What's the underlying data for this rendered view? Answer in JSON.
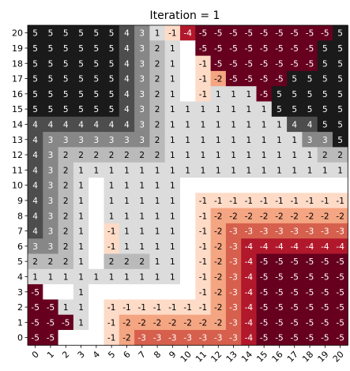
{
  "chart_data": {
    "type": "heatmap",
    "title": "Iteration = 1",
    "xlabel": "",
    "ylabel": "",
    "x_ticks": [
      "0",
      "1",
      "2",
      "3",
      "4",
      "5",
      "6",
      "7",
      "8",
      "9",
      "10",
      "11",
      "12",
      "13",
      "14",
      "15",
      "16",
      "17",
      "18",
      "19",
      "20"
    ],
    "y_ticks": [
      "0",
      "1",
      "2",
      "3",
      "4",
      "5",
      "6",
      "7",
      "8",
      "9",
      "10",
      "11",
      "12",
      "13",
      "14",
      "15",
      "16",
      "17",
      "18",
      "19",
      "20"
    ],
    "value_range": [
      -5,
      5
    ],
    "colormap": "RdGy diverging (red = -5, white = 0, dark gray = +5)",
    "colors": {
      "pos5": "#1a1a1a",
      "neg5": "#67001f",
      "zero": "#ffffff"
    },
    "grid": false,
    "values_top_row_first": [
      [
        "5",
        "5",
        "5",
        "5",
        "5",
        "5",
        "4",
        "3",
        "1",
        "-1",
        "-4",
        "-5",
        "-5",
        "-5",
        "-5",
        "-5",
        "-5",
        "-5",
        "-5",
        "-5",
        "5"
      ],
      [
        "5",
        "5",
        "5",
        "5",
        "5",
        "5",
        "4",
        "3",
        "2",
        "1",
        "",
        "-5",
        "-5",
        "-5",
        "-5",
        "-5",
        "-5",
        "-5",
        "-5",
        "5",
        "5"
      ],
      [
        "5",
        "5",
        "5",
        "5",
        "5",
        "5",
        "4",
        "3",
        "2",
        "1",
        "",
        "-1",
        "-5",
        "-5",
        "-5",
        "-5",
        "-5",
        "-5",
        "-5",
        "5",
        "5"
      ],
      [
        "5",
        "5",
        "5",
        "5",
        "5",
        "5",
        "4",
        "3",
        "2",
        "1",
        "",
        "-1",
        "-2",
        "-5",
        "-5",
        "-5",
        "-5",
        "5",
        "5",
        "5",
        "5"
      ],
      [
        "5",
        "5",
        "5",
        "5",
        "5",
        "5",
        "4",
        "3",
        "2",
        "1",
        "",
        "-1",
        "1",
        "1",
        "1",
        "-5",
        "5",
        "5",
        "5",
        "5",
        "5"
      ],
      [
        "5",
        "5",
        "5",
        "5",
        "5",
        "5",
        "4",
        "3",
        "2",
        "1",
        "1",
        "1",
        "1",
        "1",
        "1",
        "1",
        "5",
        "5",
        "5",
        "5",
        "5"
      ],
      [
        "4",
        "4",
        "4",
        "4",
        "4",
        "4",
        "4",
        "3",
        "2",
        "1",
        "1",
        "1",
        "1",
        "1",
        "1",
        "1",
        "1",
        "4",
        "4",
        "5",
        "5"
      ],
      [
        "4",
        "3",
        "3",
        "3",
        "3",
        "3",
        "3",
        "3",
        "2",
        "1",
        "1",
        "1",
        "1",
        "1",
        "1",
        "1",
        "1",
        "1",
        "3",
        "3",
        "5"
      ],
      [
        "4",
        "3",
        "2",
        "2",
        "2",
        "2",
        "2",
        "2",
        "2",
        "1",
        "1",
        "1",
        "1",
        "1",
        "1",
        "1",
        "1",
        "1",
        "1",
        "2",
        "2"
      ],
      [
        "4",
        "3",
        "2",
        "1",
        "1",
        "1",
        "1",
        "1",
        "1",
        "1",
        "1",
        "1",
        "1",
        "1",
        "1",
        "1",
        "1",
        "1",
        "1",
        "1",
        "1"
      ],
      [
        "4",
        "3",
        "2",
        "1",
        "",
        "1",
        "1",
        "1",
        "1",
        "1",
        "",
        "",
        "",
        "",
        "",
        "",
        "",
        "",
        "",
        "",
        ""
      ],
      [
        "4",
        "3",
        "2",
        "1",
        "",
        "1",
        "1",
        "1",
        "1",
        "1",
        "",
        "-1",
        "-1",
        "-1",
        "-1",
        "-1",
        "-1",
        "-1",
        "-1",
        "-1",
        "-1"
      ],
      [
        "4",
        "3",
        "2",
        "1",
        "",
        "1",
        "1",
        "1",
        "1",
        "1",
        "",
        "-1",
        "-2",
        "-2",
        "-2",
        "-2",
        "-2",
        "-2",
        "-2",
        "-2",
        "-2"
      ],
      [
        "4",
        "3",
        "2",
        "1",
        "",
        "-1",
        "1",
        "1",
        "1",
        "1",
        "",
        "-1",
        "-2",
        "-3",
        "-3",
        "-3",
        "-3",
        "-3",
        "-3",
        "-3",
        "-3"
      ],
      [
        "3",
        "3",
        "2",
        "1",
        "",
        "-1",
        "1",
        "1",
        "1",
        "1",
        "",
        "-1",
        "-2",
        "-3",
        "-4",
        "-4",
        "-4",
        "-4",
        "-4",
        "-4",
        "-4"
      ],
      [
        "2",
        "2",
        "2",
        "1",
        "",
        "2",
        "2",
        "2",
        "1",
        "1",
        "",
        "-1",
        "-2",
        "-3",
        "-4",
        "-5",
        "-5",
        "-5",
        "-5",
        "-5",
        "-5"
      ],
      [
        "1",
        "1",
        "1",
        "1",
        "1",
        "1",
        "1",
        "1",
        "1",
        "1",
        "",
        "-1",
        "-2",
        "-3",
        "-4",
        "-5",
        "-5",
        "-5",
        "-5",
        "-5",
        "-5"
      ],
      [
        "-5",
        "",
        "",
        "1",
        "",
        "",
        "",
        "",
        "",
        "",
        "",
        "-1",
        "-2",
        "-3",
        "-4",
        "-5",
        "-5",
        "-5",
        "-5",
        "-5",
        "-5"
      ],
      [
        "-5",
        "-5",
        "1",
        "1",
        "",
        "-1",
        "-1",
        "-1",
        "-1",
        "-1",
        "-1",
        "-1",
        "-2",
        "-3",
        "-4",
        "-5",
        "-5",
        "-5",
        "-5",
        "-5",
        "-5"
      ],
      [
        "-5",
        "-5",
        "-5",
        "1",
        "",
        "-1",
        "-2",
        "-2",
        "-2",
        "-2",
        "-2",
        "-2",
        "-2",
        "-3",
        "-4",
        "-5",
        "-5",
        "-5",
        "-5",
        "-5",
        "-5"
      ],
      [
        "-5",
        "-5",
        "",
        "",
        "",
        "-1",
        "-2",
        "-3",
        "-3",
        "-3",
        "-3",
        "-3",
        "-3",
        "-3",
        "-4",
        "-5",
        "-5",
        "-5",
        "-5",
        "-5",
        "-5"
      ]
    ]
  }
}
